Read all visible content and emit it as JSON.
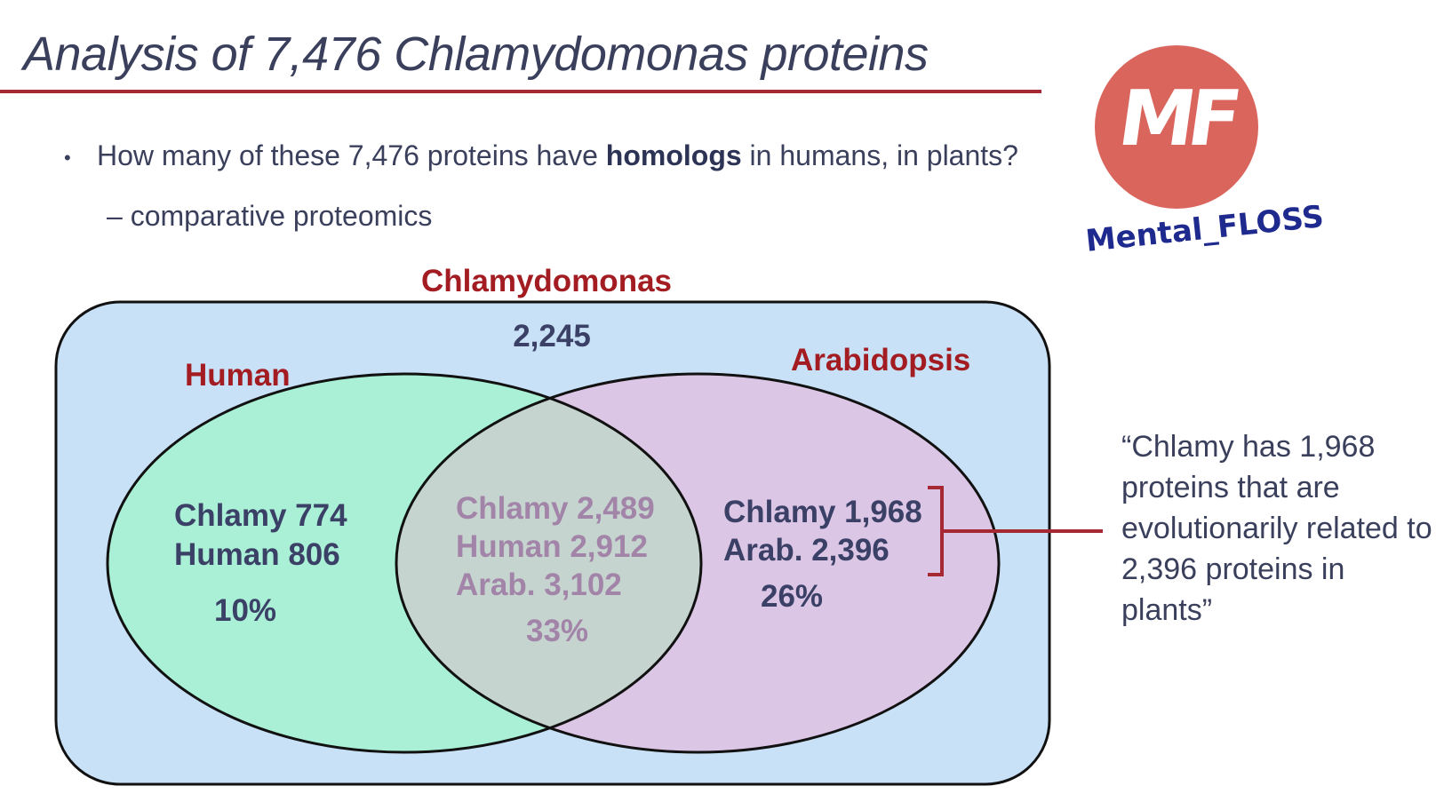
{
  "slide": {
    "title": "Analysis of 7,476 Chlamydomonas proteins",
    "bullet_prefix": "How many of these 7,476 proteins have ",
    "bullet_bold": "homologs",
    "bullet_suffix": " in humans, in plants?",
    "subbullet": "– comparative proteomics"
  },
  "logo": {
    "mark": "MF",
    "name": "Mental_FLOSS",
    "circle_color": "#d9655d",
    "text_color": "#1e2a8e"
  },
  "venn": {
    "outer": {
      "label": "Chlamydomonas",
      "value": "2,245",
      "fill": "#c9e1f6"
    },
    "human": {
      "label": "Human",
      "fill": "#a9f0d6",
      "line1": "Chlamy 774",
      "line2": "Human 806",
      "percent": "10%"
    },
    "arabidopsis": {
      "label": "Arabidopsis",
      "fill": "#dcc6e5",
      "line1": "Chlamy 1,968",
      "line2": "Arab. 2,396",
      "percent": "26%"
    },
    "overlap": {
      "fill": "#c6d4cf",
      "line1": "Chlamy 2,489",
      "line2": "Human 2,912",
      "line3": "Arab. 3,102",
      "percent": "33%"
    },
    "colors": {
      "set_label": "#a21c22",
      "region_text": "#3b4066",
      "overlap_text": "#a284a8",
      "bracket": "#a52833"
    }
  },
  "quote": "“Chlamy has 1,968 proteins that are evolutionarily related to 2,396 proteins in plants”"
}
